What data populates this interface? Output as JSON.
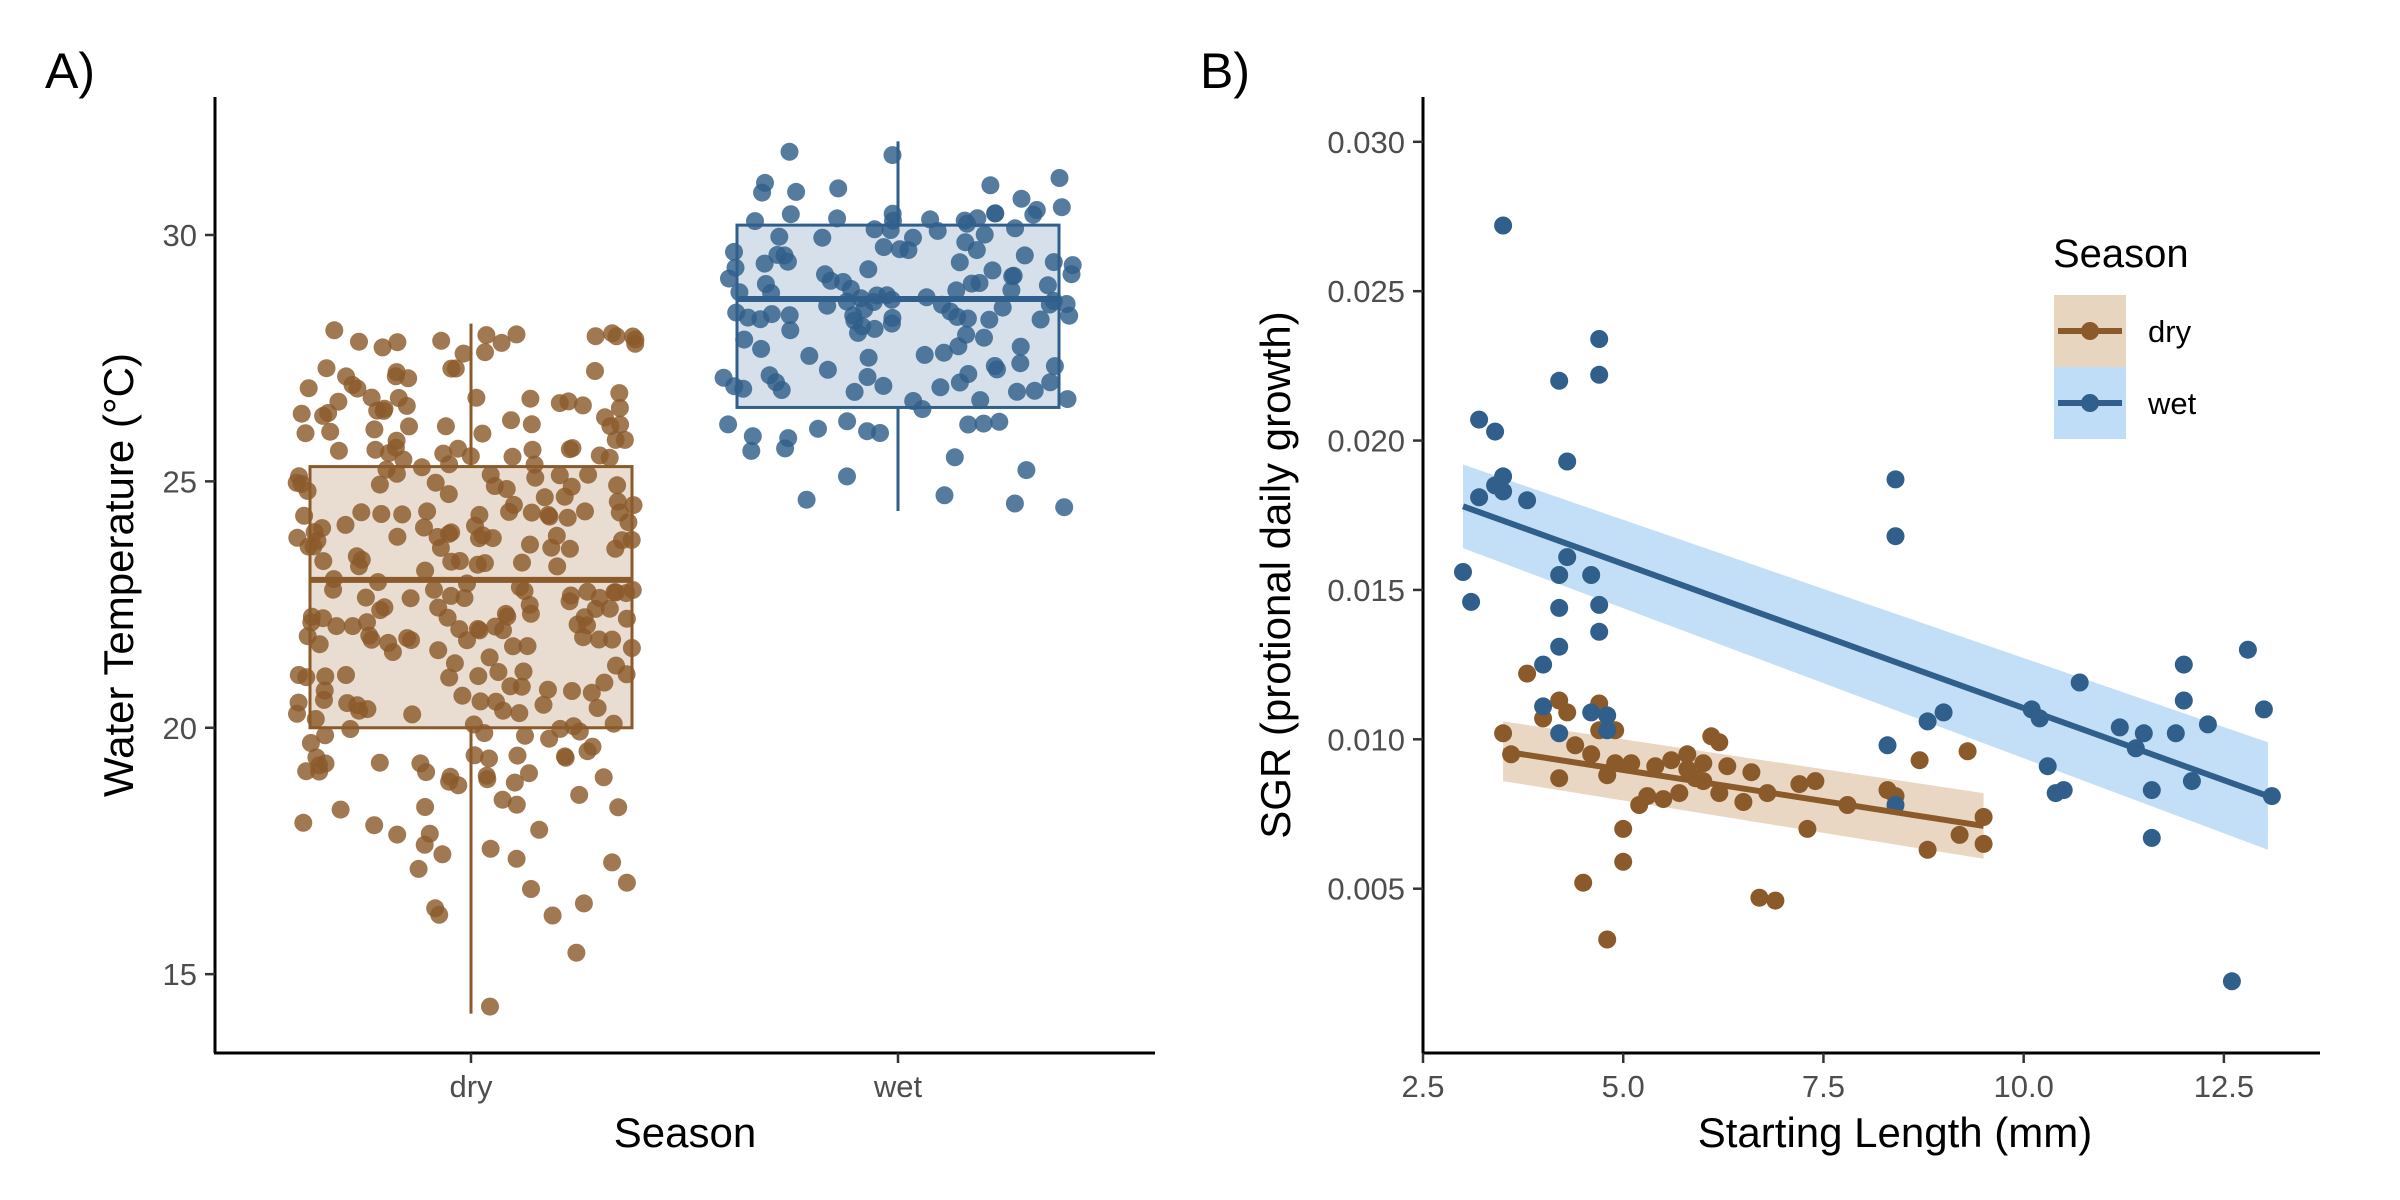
{
  "chart_data": [
    {
      "panel_label": "A)",
      "type": "box+jitter",
      "xlabel": "Season",
      "ylabel": "Water Temperature (°C)",
      "categories": [
        "dry",
        "wet"
      ],
      "ylim": [
        13.4,
        32.8
      ],
      "y_ticks": [
        15,
        20,
        25,
        30
      ],
      "grid": false,
      "colors": {
        "dry": "#8B5A2B",
        "wet": "#2F5F8A"
      },
      "boxes": [
        {
          "category": "dry",
          "min": 14.2,
          "q1": 20.0,
          "median": 23.0,
          "q3": 25.3,
          "max": 28.2
        },
        {
          "category": "wet",
          "min": 24.4,
          "q1": 26.5,
          "median": 28.7,
          "q3": 30.2,
          "max": 31.9
        }
      ],
      "points": {
        "dry_count": 300,
        "wet_count": 150
      }
    },
    {
      "panel_label": "B)",
      "type": "scatter",
      "xlabel": "Starting Length (mm)",
      "ylabel": "SGR (protional daily growth)",
      "xlim": [
        2.5,
        13.7
      ],
      "ylim": [
        -0.0005,
        0.0315
      ],
      "x_ticks": [
        2.5,
        5.0,
        7.5,
        10.0,
        12.5
      ],
      "x_tick_labels": [
        "2.5",
        "5.0",
        "7.5",
        "10.0",
        "12.5"
      ],
      "y_ticks": [
        0.005,
        0.01,
        0.015,
        0.02,
        0.025,
        0.03
      ],
      "y_tick_labels": [
        "0.005",
        "0.010",
        "0.015",
        "0.020",
        "0.025",
        "0.030"
      ],
      "grid": false,
      "legend": {
        "title": "Season",
        "position": "top-right",
        "entries": [
          "dry",
          "wet"
        ]
      },
      "series": [
        {
          "name": "dry",
          "color": "#8B5A2B",
          "band_color": "#E8D5C0",
          "x": [
            3.5,
            3.6,
            3.8,
            4.0,
            4.2,
            4.2,
            4.3,
            4.5,
            4.6,
            4.7,
            4.7,
            4.8,
            4.8,
            4.9,
            5.0,
            5.0,
            5.1,
            5.2,
            5.3,
            5.4,
            5.5,
            5.6,
            5.7,
            5.8,
            5.8,
            5.9,
            6.0,
            6.0,
            6.1,
            6.2,
            6.2,
            6.3,
            6.5,
            6.6,
            6.7,
            6.8,
            6.9,
            7.2,
            7.3,
            7.4,
            7.8,
            8.3,
            8.4,
            8.7,
            8.8,
            9.2,
            9.3,
            9.5,
            9.5,
            4.4,
            4.9
          ],
          "y": [
            0.0102,
            0.0095,
            0.0122,
            0.0107,
            0.0087,
            0.0113,
            0.0109,
            0.0052,
            0.0095,
            0.0103,
            0.0112,
            0.0033,
            0.0088,
            0.0103,
            0.0059,
            0.007,
            0.0092,
            0.0078,
            0.0081,
            0.0091,
            0.008,
            0.0093,
            0.0082,
            0.0095,
            0.009,
            0.0087,
            0.0086,
            0.0092,
            0.0101,
            0.0082,
            0.0099,
            0.0091,
            0.0079,
            0.0089,
            0.0047,
            0.0082,
            0.0046,
            0.0085,
            0.007,
            0.0086,
            0.0078,
            0.0083,
            0.0081,
            0.0093,
            0.0063,
            0.0068,
            0.0096,
            0.0065,
            0.0074,
            0.0098,
            0.0092
          ],
          "fit": {
            "x": [
              3.5,
              9.5
            ],
            "y": [
              0.0096,
              0.0071
            ],
            "band_halfwidth": [
              0.001,
              0.0011
            ]
          }
        },
        {
          "name": "wet",
          "color": "#2F5F8A",
          "band_color": "#BFDDF7",
          "x": [
            3.0,
            3.1,
            3.2,
            3.2,
            3.4,
            3.4,
            3.5,
            3.5,
            3.5,
            3.8,
            4.0,
            4.0,
            4.2,
            4.2,
            4.2,
            4.2,
            4.2,
            4.3,
            4.3,
            4.6,
            4.6,
            4.7,
            4.7,
            4.7,
            4.7,
            4.8,
            4.8,
            8.4,
            8.4,
            8.3,
            8.4,
            8.8,
            9.0,
            10.1,
            10.2,
            10.3,
            10.4,
            10.5,
            10.7,
            11.2,
            11.4,
            11.5,
            11.6,
            11.6,
            11.9,
            12.0,
            12.0,
            12.1,
            12.3,
            12.6,
            12.8,
            13.0,
            13.1
          ],
          "y": [
            0.0156,
            0.0146,
            0.0181,
            0.0207,
            0.0203,
            0.0185,
            0.0272,
            0.0188,
            0.0183,
            0.018,
            0.0111,
            0.0125,
            0.022,
            0.0155,
            0.0131,
            0.0144,
            0.0102,
            0.0193,
            0.0161,
            0.0155,
            0.0109,
            0.0234,
            0.0222,
            0.0136,
            0.0145,
            0.0103,
            0.0108,
            0.0187,
            0.0168,
            0.0098,
            0.0078,
            0.0106,
            0.0109,
            0.011,
            0.0107,
            0.0091,
            0.0082,
            0.0083,
            0.0119,
            0.0104,
            0.0097,
            0.0102,
            0.0083,
            0.0067,
            0.0102,
            0.0113,
            0.0125,
            0.0086,
            0.0105,
            0.0019,
            0.013,
            0.011,
            0.0081
          ],
          "fit": {
            "x": [
              3.0,
              13.05
            ],
            "y": [
              0.0178,
              0.0081
            ],
            "band_halfwidth": [
              0.0014,
              0.0018
            ]
          }
        }
      ]
    }
  ]
}
